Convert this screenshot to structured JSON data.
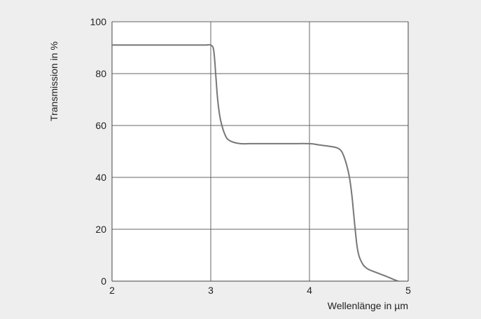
{
  "chart_data": {
    "type": "line",
    "title": "",
    "xlabel": "Wellenlänge in µm",
    "ylabel": "Transmission in %",
    "xlim": [
      2,
      5
    ],
    "ylim": [
      0,
      100
    ],
    "x_ticks": [
      "2",
      "3",
      "4",
      "5"
    ],
    "y_ticks": [
      "0",
      "20",
      "40",
      "60",
      "80",
      "100"
    ],
    "grid": true,
    "legend": "none",
    "colors": {
      "background": "#eeeeee",
      "plot_background": "#ffffff",
      "grid": "#666666",
      "line": "#777777",
      "text": "#222222"
    },
    "series": [
      {
        "x": [
          2.0,
          2.5,
          2.9,
          2.95,
          3.0,
          3.03,
          3.05,
          3.07,
          3.1,
          3.15,
          3.2,
          3.3,
          3.4,
          3.5,
          3.6,
          3.8,
          4.0,
          4.1,
          4.2,
          4.3,
          4.35,
          4.4,
          4.43,
          4.45,
          4.48,
          4.5,
          4.52,
          4.55,
          4.6,
          4.7,
          4.8,
          4.85,
          4.9
        ],
        "y": [
          91,
          91,
          91,
          91,
          91,
          89,
          80,
          70,
          62,
          56,
          54,
          53,
          53,
          53,
          53,
          53,
          53,
          52.5,
          52,
          51,
          48,
          41,
          33,
          25,
          14,
          10,
          8,
          6,
          4.5,
          3,
          1.5,
          0.7,
          0
        ]
      }
    ]
  }
}
